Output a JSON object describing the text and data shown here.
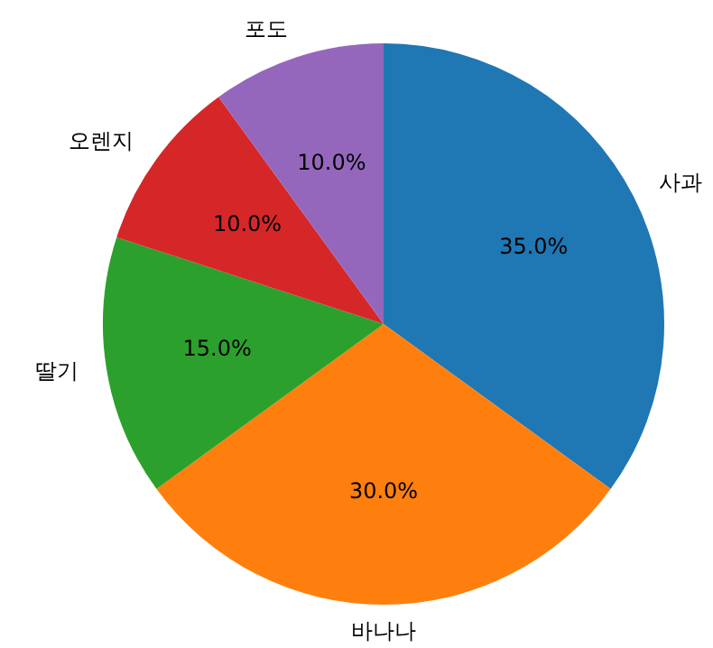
{
  "chart_data": {
    "type": "pie",
    "categories": [
      "사과",
      "바나나",
      "딸기",
      "오렌지",
      "포도"
    ],
    "values": [
      35,
      30,
      15,
      10,
      10
    ],
    "colors": [
      "#1f77b4",
      "#ff7f0e",
      "#2ca02c",
      "#d62728",
      "#9467bd"
    ],
    "value_labels": [
      "35.0%",
      "30.0%",
      "15.0%",
      "10.0%",
      "10.0%"
    ],
    "legend": false
  }
}
